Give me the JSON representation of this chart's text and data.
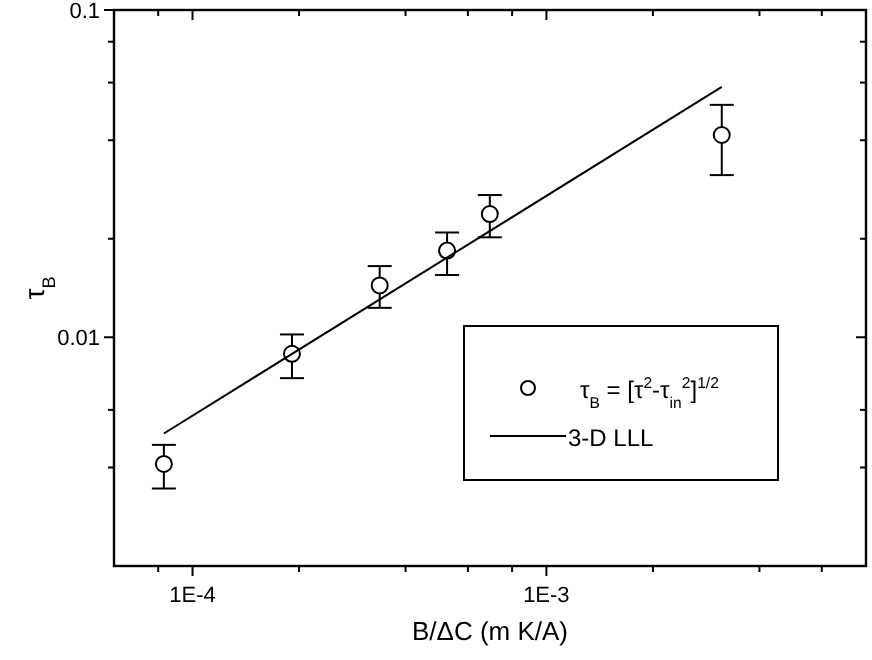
{
  "chart_data": {
    "type": "scatter",
    "xlabel": "B/ΔC (m K/A)",
    "ylabel": "τ$_{B}$",
    "log": "xy",
    "xlim": [
      6e-05,
      0.008
    ],
    "ylim": [
      0.002,
      0.1
    ],
    "xticks": [
      {
        "value": 8e-05,
        "label": null
      },
      {
        "value": 0.0001,
        "label": "1E-4"
      },
      {
        "value": 0.0002,
        "label": null
      },
      {
        "value": 0.0004,
        "label": null
      },
      {
        "value": 0.0006,
        "label": null
      },
      {
        "value": 0.0008,
        "label": null
      },
      {
        "value": 0.001,
        "label": "1E-3"
      },
      {
        "value": 0.002,
        "label": null
      },
      {
        "value": 0.004,
        "label": null
      },
      {
        "value": 0.006,
        "label": null
      }
    ],
    "yticks": [
      {
        "value": 0.004,
        "label": null
      },
      {
        "value": 0.006,
        "label": null
      },
      {
        "value": 0.01,
        "label": "0.01"
      },
      {
        "value": 0.02,
        "label": null
      },
      {
        "value": 0.04,
        "label": null
      },
      {
        "value": 0.06,
        "label": null
      },
      {
        "value": 0.08,
        "label": null
      },
      {
        "value": 0.1,
        "label": "0.1"
      }
    ],
    "grid": false,
    "legend": "bottom right",
    "series": [
      {
        "name": "τ$_{B}$ = [τ$^{2}$-τ$_{in}$$^{2}$]$^{1/2}$",
        "color": "#000000",
        "marker": "circle",
        "x": [
          8.3e-05,
          0.000191,
          0.000338,
          0.000524,
          0.000692,
          0.00313
        ],
        "values": [
          0.0041,
          0.0089,
          0.0144,
          0.0184,
          0.0238,
          0.0415
        ],
        "errors": [
          [
            0.00345,
            0.00469
          ],
          [
            0.0075,
            0.0102
          ],
          [
            0.0123,
            0.0165
          ],
          [
            0.0155,
            0.0209
          ],
          [
            0.0202,
            0.0272
          ],
          [
            0.0313,
            0.0513
          ]
        ]
      },
      {
        "name": "3-D LLL",
        "type": "line",
        "color": "#000000",
        "line_style": "solid",
        "x": [
          8.3e-05,
          0.00313
        ],
        "values": [
          0.00508,
          0.0582
        ]
      }
    ]
  }
}
